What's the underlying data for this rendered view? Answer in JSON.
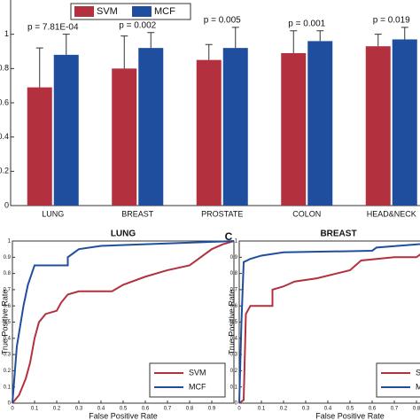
{
  "chart_data": [
    {
      "type": "bar",
      "categories": [
        "LUNG",
        "BREAST",
        "PROSTATE",
        "COLON",
        "HEAD&NECK"
      ],
      "series": [
        {
          "name": "SVM",
          "color": "#b3303e",
          "values": [
            0.69,
            0.8,
            0.85,
            0.89,
            0.93
          ],
          "errors": [
            0.23,
            0.19,
            0.09,
            0.13,
            0.07
          ]
        },
        {
          "name": "MCF",
          "color": "#1f4e9f",
          "values": [
            0.88,
            0.92,
            0.92,
            0.96,
            0.97
          ],
          "errors": [
            0.12,
            0.09,
            0.12,
            0.06,
            0.07
          ]
        }
      ],
      "annotations": [
        "p = 7.81E-04",
        "p = 0.002",
        "p = 0.005",
        "p = 0.001",
        "p = 0.019"
      ],
      "ylim": [
        0,
        1.2
      ],
      "yticks": [
        0,
        0.2,
        0.4,
        0.6,
        0.8,
        1
      ],
      "legend": "top-left"
    },
    {
      "type": "line",
      "title": "LUNG",
      "xlabel": "False Positive Rate",
      "ylabel": "True Positive Rate",
      "series": [
        {
          "name": "SVM",
          "color": "#b3303e",
          "x": [
            0,
            0.03,
            0.06,
            0.08,
            0.1,
            0.12,
            0.15,
            0.2,
            0.22,
            0.25,
            0.3,
            0.45,
            0.5,
            0.6,
            0.7,
            0.8,
            0.85,
            0.9,
            0.95,
            1
          ],
          "values": [
            0,
            0.05,
            0.15,
            0.25,
            0.4,
            0.5,
            0.55,
            0.57,
            0.62,
            0.67,
            0.69,
            0.69,
            0.73,
            0.78,
            0.82,
            0.85,
            0.9,
            0.95,
            0.98,
            1
          ]
        },
        {
          "name": "MCF",
          "color": "#1f4e9f",
          "x": [
            0,
            0.02,
            0.05,
            0.07,
            0.1,
            0.25,
            0.25,
            0.3,
            0.4,
            0.6,
            1
          ],
          "values": [
            0,
            0.35,
            0.6,
            0.73,
            0.85,
            0.85,
            0.9,
            0.95,
            0.97,
            0.98,
            1
          ]
        }
      ],
      "xlim": [
        0,
        1
      ],
      "ylim": [
        0,
        1
      ],
      "xticks": [
        0,
        0.1,
        0.2,
        0.3,
        0.4,
        0.5,
        0.6,
        0.7,
        0.8,
        0.9
      ],
      "yticks": [
        0,
        0.1,
        0.2,
        0.3,
        0.4,
        0.5,
        0.6,
        0.7,
        0.8,
        0.9,
        1
      ],
      "legend": "bottom-right"
    },
    {
      "type": "line",
      "title": "BREAST",
      "panel_label": "C",
      "xlabel": "False Positive Rate",
      "ylabel": "True Positive Rate",
      "series": [
        {
          "name": "SVM",
          "color": "#b3303e",
          "x": [
            0,
            0.02,
            0.03,
            0.05,
            0.15,
            0.15,
            0.2,
            0.25,
            0.35,
            0.5,
            0.55,
            0.7,
            0.8,
            0.85,
            1
          ],
          "values": [
            0,
            0.02,
            0.55,
            0.6,
            0.6,
            0.7,
            0.72,
            0.75,
            0.77,
            0.82,
            0.88,
            0.9,
            0.9,
            0.95,
            1
          ]
        },
        {
          "name": "MCF",
          "color": "#1f4e9f",
          "x": [
            0,
            0.01,
            0.02,
            0.05,
            0.1,
            0.2,
            0.6,
            0.62,
            1
          ],
          "values": [
            0,
            0.5,
            0.87,
            0.89,
            0.91,
            0.93,
            0.94,
            0.96,
            1
          ]
        }
      ],
      "xlim": [
        0,
        1
      ],
      "ylim": [
        0,
        1
      ],
      "xticks": [
        0,
        0.1,
        0.2,
        0.3,
        0.4,
        0.5,
        0.6,
        0.7,
        0.8,
        0.9
      ],
      "yticks": [
        0,
        0.1,
        0.2,
        0.3,
        0.4,
        0.5,
        0.6,
        0.7,
        0.8,
        0.9,
        1
      ],
      "legend": "bottom-right"
    }
  ]
}
